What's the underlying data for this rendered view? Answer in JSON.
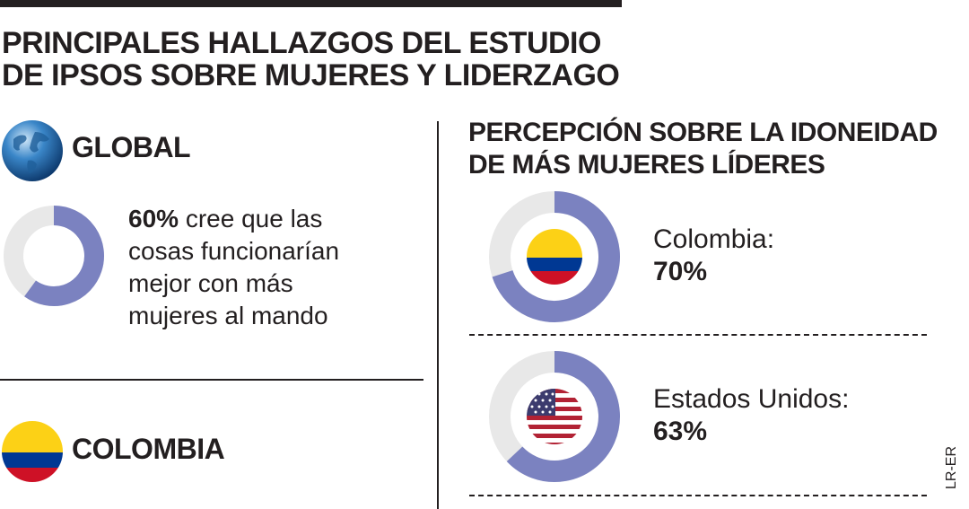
{
  "header": {
    "title_line1": "PRINCIPALES HALLAZGOS DEL ESTUDIO",
    "title_line2": "DE IPSOS SOBRE MUJERES Y LIDERZAGO"
  },
  "global": {
    "label": "GLOBAL",
    "stat": "60%",
    "text_line1": " cree que las",
    "text_line2": "cosas funcionarían",
    "text_line3": "mejor con más",
    "text_line4": "mujeres al mando"
  },
  "colombia_section": {
    "label": "COLOMBIA"
  },
  "perception": {
    "title_line1": "PERCEPCIÓN SOBRE LA IDONEIDAD",
    "title_line2": "DE MÁS MUJERES LÍDERES",
    "items": [
      {
        "country": "Colombia:",
        "value": "70%"
      },
      {
        "country": "Estados Unidos:",
        "value": "63%"
      }
    ]
  },
  "credit": "LR-ER",
  "colors": {
    "accent": "#7b82c0",
    "track": "#e8e8e8",
    "text": "#231f20"
  },
  "chart_data": [
    {
      "type": "pie",
      "labels": [
        "Global"
      ],
      "values": [
        60
      ]
    },
    {
      "type": "pie",
      "labels": [
        "Colombia",
        "Estados Unidos"
      ],
      "values": [
        70,
        63
      ]
    }
  ]
}
